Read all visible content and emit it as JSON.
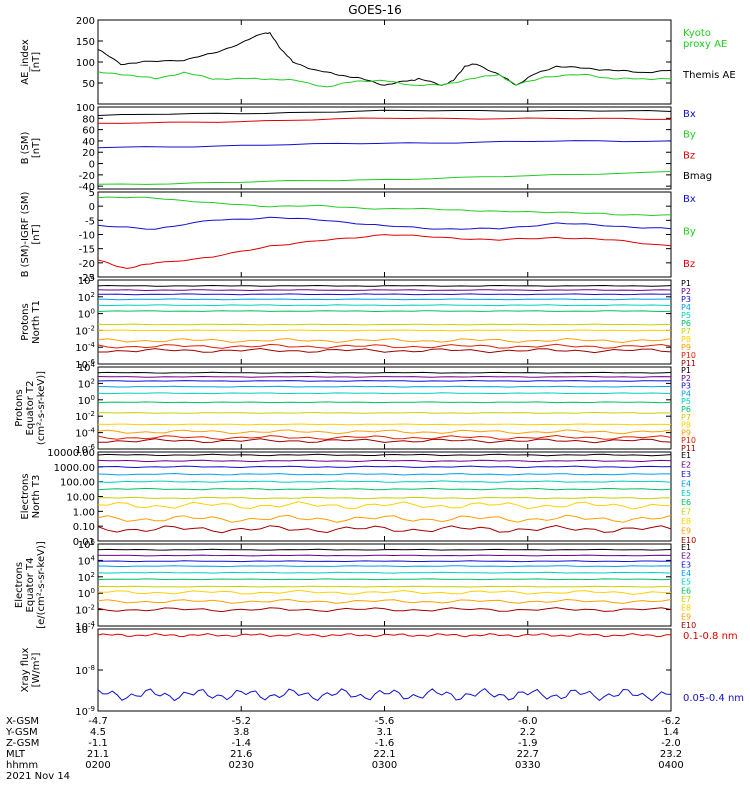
{
  "title": "GOES-16",
  "colors": {
    "black": "#000000",
    "red": "#e00000",
    "green": "#22cc22",
    "blue": "#1010d0",
    "p1": "#000000",
    "p2": "#6a0088",
    "p3": "#1010d0",
    "p4": "#00a0f0",
    "p5": "#00d0c0",
    "p6": "#00c060",
    "p7": "#c8d000",
    "p8": "#ffd000",
    "p9": "#ffa000",
    "p10": "#e02000",
    "p11": "#a00000"
  },
  "ephemeris": {
    "labels": [
      "X-GSM",
      "Y-GSM",
      "Z-GSM",
      "MLT",
      "hhmm"
    ],
    "date": "2021 Nov 14",
    "columns": [
      {
        "X-GSM": "-4.7",
        "Y-GSM": "4.5",
        "Z-GSM": "-1.1",
        "MLT": "21.1",
        "hhmm": "0200"
      },
      {
        "X-GSM": "-5.2",
        "Y-GSM": "3.8",
        "Z-GSM": "-1.4",
        "MLT": "21.6",
        "hhmm": "0230"
      },
      {
        "X-GSM": "-5.6",
        "Y-GSM": "3.1",
        "Z-GSM": "-1.6",
        "MLT": "22.1",
        "hhmm": "0300"
      },
      {
        "X-GSM": "-6.0",
        "Y-GSM": "2.2",
        "Z-GSM": "-1.9",
        "MLT": "22.7",
        "hhmm": "0330"
      },
      {
        "X-GSM": "-6.2",
        "Y-GSM": "1.4",
        "Z-GSM": "-2.0",
        "MLT": "23.2",
        "hhmm": "0400"
      }
    ]
  },
  "chart_data": [
    {
      "type": "line",
      "ylabel": [
        "AE_index",
        "[nT]"
      ],
      "ylim": [
        0,
        200
      ],
      "yticks": [
        "200",
        "150",
        "100",
        "50"
      ],
      "x_range": [
        "0200",
        "0400"
      ],
      "legend": [
        {
          "text": "Kyoto",
          "color": "green"
        },
        {
          "text": "proxy AE",
          "color": "green"
        },
        {
          "text": "Themis AE",
          "color": "black"
        }
      ],
      "series": [
        {
          "name": "Themis AE",
          "color": "black",
          "x": [
            0,
            0.04,
            0.08,
            0.15,
            0.2,
            0.25,
            0.29,
            0.3,
            0.32,
            0.34,
            0.38,
            0.42,
            0.46,
            0.5,
            0.54,
            0.56,
            0.6,
            0.62,
            0.64,
            0.66,
            0.7,
            0.73,
            0.76,
            0.8,
            0.85,
            0.9,
            0.95,
            1.0
          ],
          "y": [
            130,
            95,
            100,
            105,
            120,
            145,
            170,
            168,
            130,
            100,
            80,
            70,
            60,
            45,
            55,
            60,
            45,
            55,
            90,
            95,
            70,
            45,
            70,
            90,
            85,
            80,
            75,
            80
          ]
        },
        {
          "name": "Kyoto proxy AE",
          "color": "green",
          "x": [
            0,
            0.05,
            0.1,
            0.15,
            0.2,
            0.25,
            0.3,
            0.35,
            0.4,
            0.45,
            0.5,
            0.55,
            0.6,
            0.65,
            0.7,
            0.73,
            0.78,
            0.85,
            0.9,
            0.95,
            1.0
          ],
          "y": [
            75,
            70,
            60,
            75,
            60,
            60,
            60,
            55,
            40,
            55,
            55,
            45,
            45,
            60,
            70,
            45,
            65,
            70,
            60,
            60,
            60
          ]
        }
      ]
    },
    {
      "type": "line",
      "ylabel": [
        "B (SM)",
        "[nT]"
      ],
      "ylim": [
        -45,
        100
      ],
      "yticks": [
        "100",
        "80",
        "60",
        "40",
        "20",
        "0",
        "-20",
        "-40"
      ],
      "legend": [
        {
          "text": "Bx",
          "color": "blue"
        },
        {
          "text": "By",
          "color": "green"
        },
        {
          "text": "Bz",
          "color": "red"
        },
        {
          "text": "Bmag",
          "color": "black"
        }
      ],
      "series": [
        {
          "name": "Bmag",
          "color": "black",
          "x": [
            0,
            0.25,
            0.5,
            0.75,
            1.0
          ],
          "y": [
            85,
            89,
            93,
            94,
            92
          ]
        },
        {
          "name": "Bz",
          "color": "red",
          "x": [
            0,
            0.25,
            0.5,
            0.75,
            1.0
          ],
          "y": [
            70,
            75,
            80,
            80,
            78
          ]
        },
        {
          "name": "Bx",
          "color": "blue",
          "x": [
            0,
            0.25,
            0.5,
            0.75,
            1.0
          ],
          "y": [
            28,
            32,
            36,
            39,
            40
          ]
        },
        {
          "name": "By",
          "color": "green",
          "x": [
            0,
            0.25,
            0.5,
            0.75,
            1.0
          ],
          "y": [
            -37,
            -33,
            -28,
            -22,
            -14
          ]
        }
      ]
    },
    {
      "type": "line",
      "ylabel": [
        "B (SM)-IGRF (SM)",
        "[nT]"
      ],
      "ylim": [
        -25,
        5
      ],
      "yticks": [
        "5",
        "0",
        "-5",
        "-10",
        "-15",
        "-20",
        "-25"
      ],
      "legend": [
        {
          "text": "Bx",
          "color": "blue"
        },
        {
          "text": "By",
          "color": "green"
        },
        {
          "text": "Bz",
          "color": "red"
        }
      ],
      "series": [
        {
          "name": "By",
          "color": "green",
          "x": [
            0,
            0.1,
            0.2,
            0.3,
            0.4,
            0.5,
            0.6,
            0.7,
            0.8,
            0.9,
            1.0
          ],
          "y": [
            3,
            3,
            1,
            0,
            0,
            -1,
            -1,
            -2,
            -2,
            -3,
            -3
          ]
        },
        {
          "name": "Bx",
          "color": "blue",
          "x": [
            0,
            0.1,
            0.2,
            0.3,
            0.4,
            0.5,
            0.6,
            0.7,
            0.8,
            0.9,
            1.0
          ],
          "y": [
            -7,
            -8,
            -5,
            -4,
            -5,
            -7,
            -8,
            -8,
            -6,
            -7,
            -8
          ]
        },
        {
          "name": "Bz",
          "color": "red",
          "x": [
            0,
            0.05,
            0.1,
            0.2,
            0.3,
            0.4,
            0.5,
            0.6,
            0.7,
            0.8,
            0.9,
            1.0
          ],
          "y": [
            -19,
            -22,
            -20,
            -18,
            -14,
            -12,
            -10,
            -11,
            -12,
            -11,
            -12,
            -14
          ]
        }
      ]
    },
    {
      "type": "line",
      "ylabel": [
        "Protons",
        "North T1"
      ],
      "ylim_exp": [
        -6,
        4
      ],
      "yticks_exp": [
        4,
        2,
        0,
        -2,
        -4,
        -6
      ],
      "legend": [
        "P1",
        "P2",
        "P3",
        "P4",
        "P5",
        "P6",
        "P7",
        "P8",
        "P9",
        "P10",
        "P11"
      ],
      "levels_exp": [
        3.3,
        2.8,
        2.3,
        1.7,
        1.0,
        0.3,
        -1.3,
        -2.0,
        -3.2,
        -3.9,
        -4.4
      ],
      "colors": [
        "p1",
        "p2",
        "p3",
        "p4",
        "p5",
        "p6",
        "p7",
        "p8",
        "p9",
        "p10",
        "p11"
      ]
    },
    {
      "type": "line",
      "ylabel": [
        "Protons",
        "Equator T2",
        "(cm²-s-sr-keV)]"
      ],
      "ylim_exp": [
        -6,
        4
      ],
      "yticks_exp": [
        4,
        2,
        0,
        -2,
        -4,
        -6
      ],
      "legend": [
        "P1",
        "P2",
        "P3",
        "P4",
        "P5",
        "P6",
        "P7",
        "P8",
        "P9",
        "P10",
        "P11"
      ],
      "levels_exp": [
        3.3,
        2.8,
        2.3,
        1.6,
        0.8,
        -0.3,
        -1.6,
        -3.0,
        -3.9,
        -4.6,
        -5.0
      ],
      "colors": [
        "p1",
        "p2",
        "p3",
        "p4",
        "p5",
        "p6",
        "p7",
        "p8",
        "p9",
        "p10",
        "p11"
      ]
    },
    {
      "type": "line",
      "ylabel": [
        "Electrons",
        "North T3"
      ],
      "ylim_exp": [
        -2,
        4
      ],
      "yticks": [
        "10000.00",
        "1000.00",
        "100.00",
        "10.00",
        "1.00",
        "0.10",
        "0.01"
      ],
      "legend": [
        "E1",
        "E2",
        "E3",
        "E4",
        "E5",
        "E6",
        "E7",
        "E8",
        "E9",
        "E10"
      ],
      "levels_exp": [
        3.8,
        3.4,
        3.0,
        2.5,
        2.0,
        1.5,
        0.9,
        0.4,
        -0.5,
        -1.2
      ],
      "colors": [
        "p1",
        "p2",
        "p3",
        "p4",
        "p5",
        "p6",
        "p7",
        "p8",
        "p9",
        "p11"
      ]
    },
    {
      "type": "line",
      "ylabel": [
        "Electrons",
        "Equator T4",
        "[e/(cm²-s-sr-keV)]"
      ],
      "ylim_exp": [
        -4,
        6
      ],
      "yticks_exp": [
        6,
        4,
        2,
        0,
        -2,
        -4
      ],
      "legend": [
        "E1",
        "E2",
        "E3",
        "E4",
        "E5",
        "E6",
        "E7",
        "E8",
        "E9",
        "E10"
      ],
      "levels_exp": [
        5.3,
        4.6,
        3.9,
        3.3,
        2.5,
        1.7,
        0.8,
        0.1,
        -1.0,
        -2.0
      ],
      "colors": [
        "p1",
        "p2",
        "p3",
        "p4",
        "p5",
        "p6",
        "p7",
        "p8",
        "p9",
        "p11"
      ]
    },
    {
      "type": "line",
      "ylabel": [
        "Xray flux",
        "[W/m²]"
      ],
      "ylim_exp": [
        -9,
        -7
      ],
      "yticks_exp": [
        -7,
        -8,
        -9
      ],
      "legend": [
        {
          "text": "0.1-0.8 nm",
          "color": "red"
        },
        {
          "text": "0.05-0.4 nm",
          "color": "blue"
        }
      ],
      "series": [
        {
          "name": "0.1-0.8 nm",
          "color": "red",
          "level_exp": -7.15
        },
        {
          "name": "0.05-0.4 nm",
          "color": "blue",
          "level_exp": -8.6
        }
      ]
    }
  ]
}
